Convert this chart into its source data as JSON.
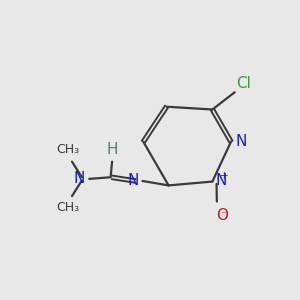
{
  "bg_color": "#e8e8e8",
  "bond_color": "#3a3a3a",
  "bond_width": 1.6,
  "atom_colors": {
    "N": "#1a1acc",
    "O": "#cc1a1a",
    "Cl": "#3a9a3a",
    "C": "#3a3a3a",
    "H": "#5a7a7a"
  },
  "font_size_main": 11,
  "font_size_small": 9
}
